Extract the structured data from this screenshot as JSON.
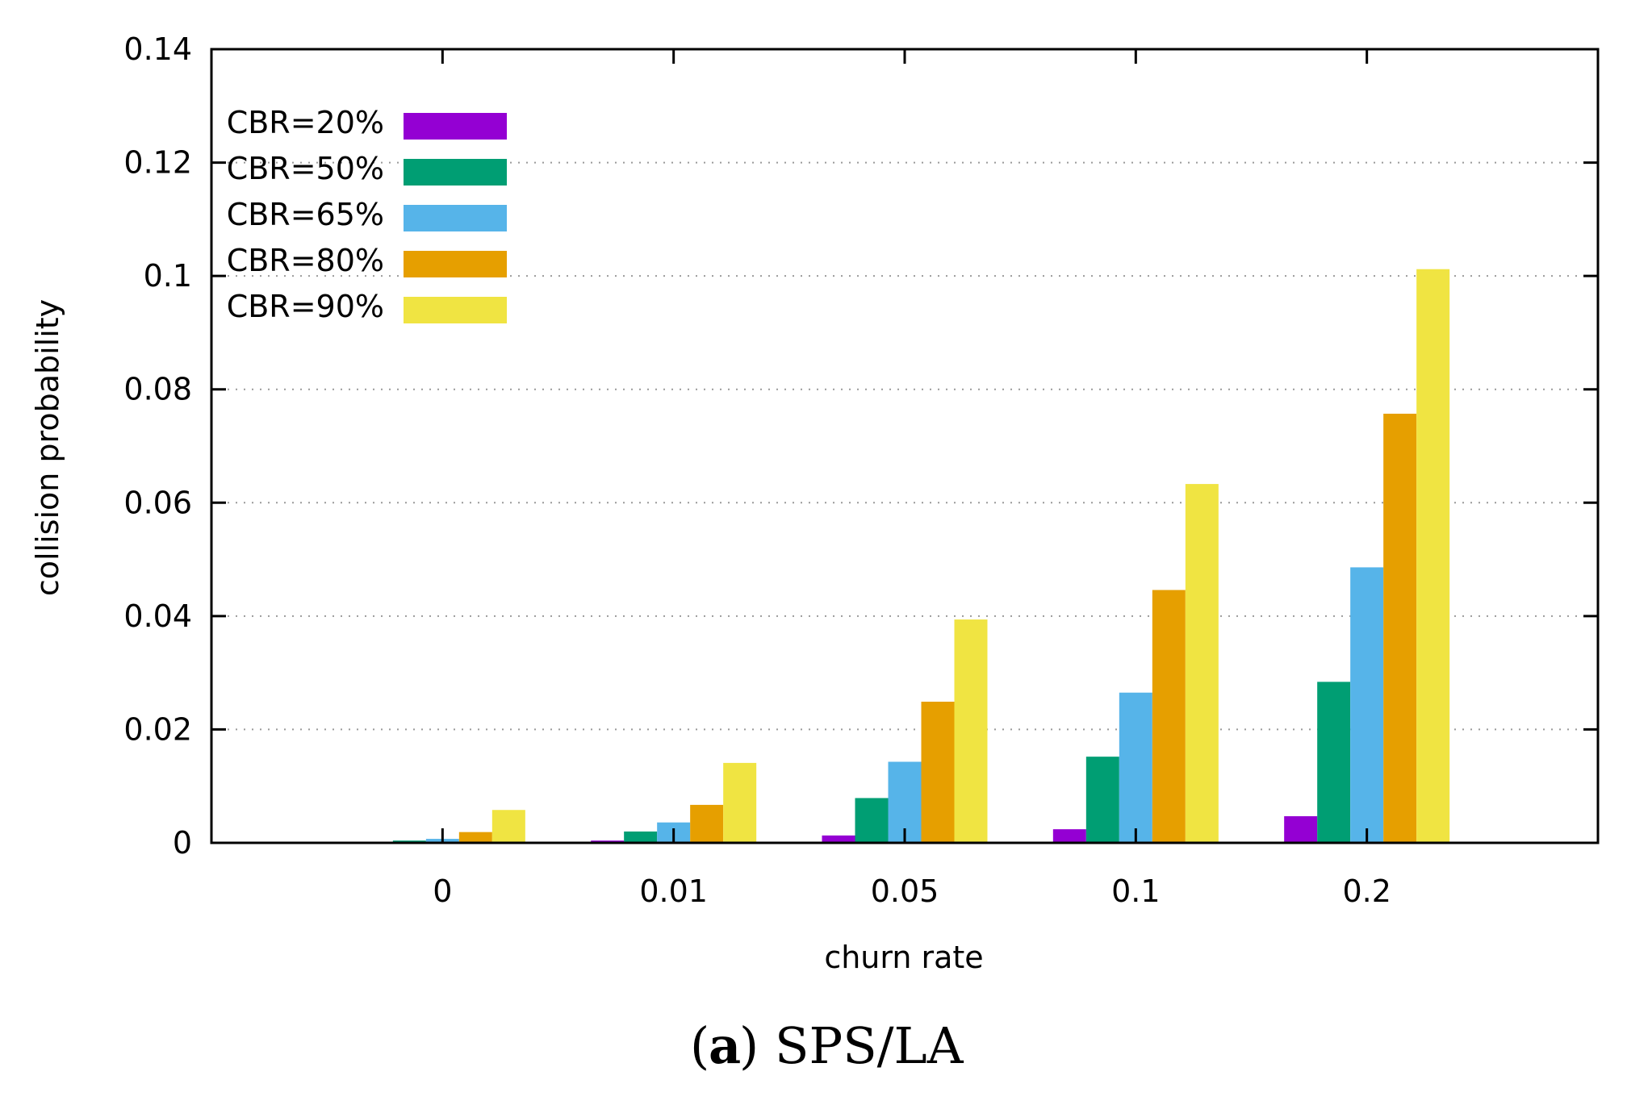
{
  "chart_data": {
    "type": "bar",
    "title": "",
    "xlabel": "churn rate",
    "ylabel": "collision probability",
    "categories": [
      "0",
      "0.01",
      "0.05",
      "0.1",
      "0.2"
    ],
    "ylim": [
      0,
      0.14
    ],
    "yticks": [
      0,
      0.02,
      0.04,
      0.06,
      0.08,
      0.1,
      0.12,
      0.14
    ],
    "ytick_labels": [
      "0",
      "0.02",
      "0.04",
      "0.06",
      "0.08",
      "0.1",
      "0.12",
      "0.14"
    ],
    "grid": "horizontal dotted",
    "legend_position": "top-left",
    "series": [
      {
        "name": "CBR=20%",
        "color": "#9400d3",
        "values": [
          0.0002,
          0.0004,
          0.0013,
          0.0024,
          0.0047
        ]
      },
      {
        "name": "CBR=50%",
        "color": "#009e73",
        "values": [
          0.0004,
          0.002,
          0.0079,
          0.0152,
          0.0284
        ]
      },
      {
        "name": "CBR=65%",
        "color": "#56b4e9",
        "values": [
          0.0007,
          0.0036,
          0.0143,
          0.0265,
          0.0486
        ]
      },
      {
        "name": "CBR=80%",
        "color": "#e69f00",
        "values": [
          0.0019,
          0.0067,
          0.0249,
          0.0446,
          0.0757
        ]
      },
      {
        "name": "CBR=90%",
        "color": "#f0e442",
        "values": [
          0.0058,
          0.0141,
          0.0394,
          0.0633,
          0.1012
        ]
      }
    ]
  },
  "caption": {
    "label": "a",
    "text": "SPS/LA"
  }
}
